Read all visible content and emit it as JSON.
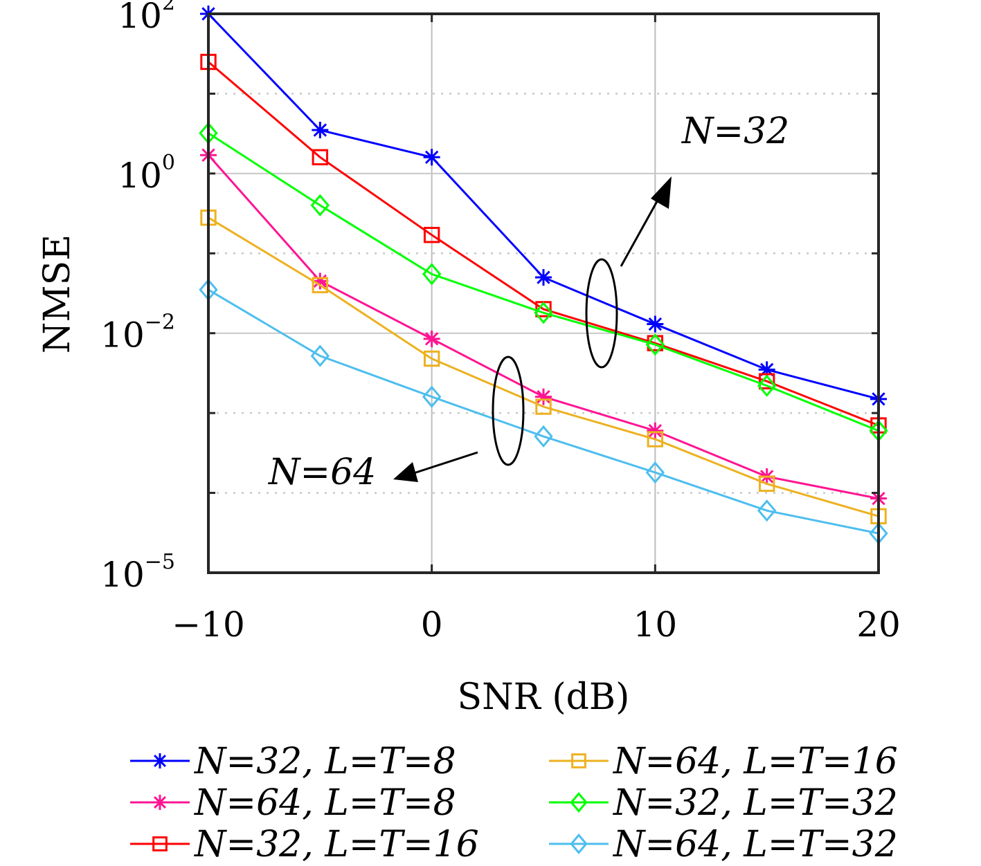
{
  "chart_data": {
    "type": "line",
    "xlabel": "SNR (dB)",
    "ylabel": "NMSE",
    "xlim": [
      -10,
      20
    ],
    "ylim_log10": [
      -5,
      2
    ],
    "yscale": "log",
    "grid": true,
    "x_ticks": [
      "−10",
      "0",
      "10",
      "20"
    ],
    "y_ticks": [
      {
        "base": "10",
        "exp": "2"
      },
      {
        "base": "10",
        "exp": "0"
      },
      {
        "base": "10",
        "exp": "−2"
      },
      {
        "base": "10",
        "exp": "−5"
      }
    ],
    "x": [
      -10,
      -5,
      0,
      5,
      10,
      15,
      20
    ],
    "series": [
      {
        "name": "N=32, L=T=8",
        "color": "#0000ff",
        "marker": "asterisk",
        "values": [
          100,
          3.5,
          1.6,
          0.05,
          0.013,
          0.0035,
          0.0015
        ]
      },
      {
        "name": "N=64, L=T=8",
        "color": "#ff1493",
        "marker": "asterisk",
        "values": [
          1.7,
          0.045,
          0.0085,
          0.0016,
          0.0006,
          0.00016,
          8.51e-05
        ]
      },
      {
        "name": "N=32, L=T=16",
        "color": "#ff0000",
        "marker": "square",
        "values": [
          25,
          1.6,
          0.17,
          0.02,
          0.0075,
          0.0025,
          0.0007
        ]
      },
      {
        "name": "N=64, L=T=16",
        "color": "#edb120",
        "marker": "square",
        "values": [
          0.28,
          0.04,
          0.0048,
          0.0012,
          0.00047,
          0.00013,
          5.1e-05
        ]
      },
      {
        "name": "N=32, L=T=32",
        "color": "#00ff00",
        "marker": "diamond",
        "values": [
          3.2,
          0.4,
          0.055,
          0.018,
          0.0072,
          0.0022,
          0.0006
        ]
      },
      {
        "name": "N=64, L=T=32",
        "color": "#4dbeee",
        "marker": "diamond",
        "values": [
          0.035,
          0.0052,
          0.0016,
          0.00051,
          0.00018,
          6e-05,
          3.11e-05
        ]
      }
    ],
    "annotations": [
      {
        "text": "N=32"
      },
      {
        "text": "N=64"
      }
    ],
    "legend": {
      "placement": "bottom, two columns",
      "entries": [
        "N=32, L=T=8",
        "N=64, L=T=8",
        "N=32, L=T=16",
        "N=64,  L=T=16",
        "N=32,  L=T=32",
        "N=64,  L=T=32"
      ]
    }
  }
}
